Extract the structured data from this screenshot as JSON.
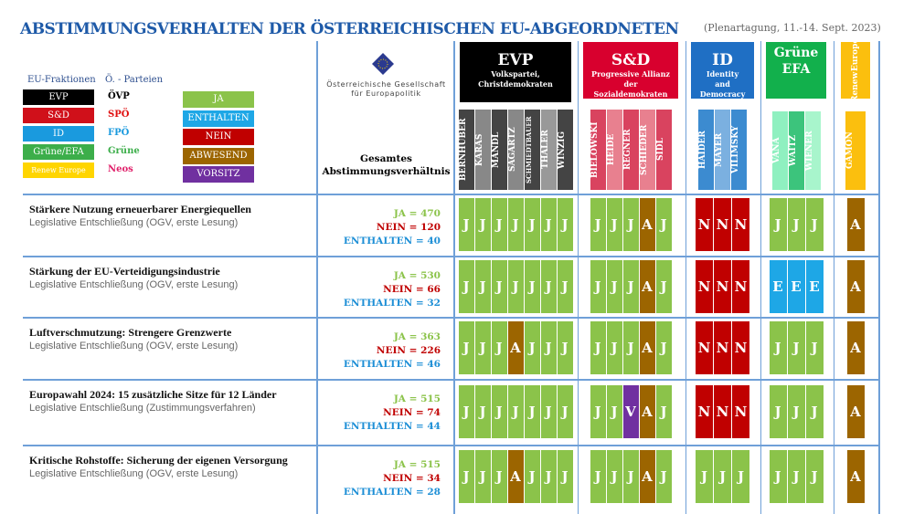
{
  "header": {
    "title": "ABSTIMMUNGSVERHALTEN DER ÖSTERREICHISCHEN  EU-ABGEORDNETEN",
    "session": "(Plenartagung, 11.-14. Sept. 2023)"
  },
  "legend": {
    "fraktionen_label": "EU-Fraktionen",
    "parteien_label": "Ö. - Parteien",
    "fraktionen": [
      {
        "label": "EVP",
        "color": "#000000",
        "party": "ÖVP",
        "party_color": "#000000"
      },
      {
        "label": "S&D",
        "color": "#d0101a",
        "party": "SPÖ",
        "party_color": "#e01010"
      },
      {
        "label": "ID",
        "color": "#1a9ade",
        "party": "FPÖ",
        "party_color": "#1a9ade"
      },
      {
        "label": "Grüne/EFA",
        "color": "#3cae4a",
        "party": "Grüne",
        "party_color": "#3cae4a"
      },
      {
        "label": "Renew Europe",
        "color": "#ffd500",
        "party": "Neos",
        "party_color": "#e0206a"
      }
    ],
    "votes": [
      {
        "label": "JA",
        "color": "#8bc34a"
      },
      {
        "label": "ENTHALTEN",
        "color": "#1ea7e6"
      },
      {
        "label": "NEIN",
        "color": "#c00000"
      },
      {
        "label": "ABWESEND",
        "color": "#9c6500"
      },
      {
        "label": "VORSITZ",
        "color": "#7030a0"
      }
    ]
  },
  "org": {
    "name_line1": "Österreichische Gesellschaft",
    "name_line2": "für Europapolitik"
  },
  "totals_header": {
    "line1": "Gesamtes",
    "line2": "Abstimmungsverhältnis"
  },
  "groups": [
    {
      "name": "EVP",
      "desc": [
        "Volkspartei,",
        "Christdemokraten"
      ],
      "color": "#000000",
      "members": [
        "BERNHUBER",
        "KARAS",
        "MANDL",
        "SAGARTZ",
        "SCHMIEDTBAUER",
        "THALER",
        "WINZIG"
      ],
      "member_colors": [
        "#444444",
        "#888888",
        "#444444",
        "#888888",
        "#444444",
        "#999999",
        "#444444"
      ]
    },
    {
      "name": "S&D",
      "desc": [
        "Progressive Allianz",
        "der",
        "Sozialdemokraten"
      ],
      "color": "#d8002e",
      "members": [
        "BIELOWSKI",
        "HEIDE",
        "REGNER",
        "SCHIEDER",
        "SIDL"
      ],
      "member_colors": [
        "#d9435f",
        "#e8808f",
        "#d9435f",
        "#e8808f",
        "#d9435f"
      ]
    },
    {
      "name": "ID",
      "desc": [
        "Identity",
        "and",
        "Democracy"
      ],
      "color": "#1f6fc4",
      "members": [
        "HAIDER",
        "MAYER",
        "VILIMSKY"
      ],
      "member_colors": [
        "#3c8bd0",
        "#7bb0e0",
        "#3c8bd0"
      ]
    },
    {
      "name": "Grüne",
      "desc": [
        "EFA"
      ],
      "color": "#12b04c",
      "members": [
        "VANA",
        "WAITZ",
        "WIENER"
      ],
      "member_colors": [
        "#8ff0c0",
        "#3cc47c",
        "#a8f5cc"
      ]
    },
    {
      "name": "Renew",
      "desc": [
        "Europe"
      ],
      "color": "#fbbf0e",
      "members": [
        "GAMON"
      ],
      "member_colors": [
        "#fbbf0e"
      ]
    }
  ],
  "vote_colors": {
    "J": "#8bc34a",
    "N": "#c00000",
    "A": "#9c6500",
    "E": "#1ea7e6",
    "V": "#7030a0"
  },
  "rows": [
    {
      "title": "Stärkere Nutzung erneuerbarer Energiequellen",
      "subtitle": "Legislative Entschließung (OGV, erste Lesung)",
      "ja": "JA  = 470",
      "nein": "NEIN = 120",
      "enthalten": "ENTHALTEN = 40",
      "votes": [
        [
          "J",
          "J",
          "J",
          "J",
          "J",
          "J",
          "J"
        ],
        [
          "J",
          "J",
          "J",
          "A",
          "J"
        ],
        [
          "N",
          "N",
          "N"
        ],
        [
          "J",
          "J",
          "J"
        ],
        [
          "A"
        ]
      ]
    },
    {
      "title": "Stärkung der EU-Verteidigungsindustrie",
      "subtitle": "Legislative Entschließung (OGV, erste Lesung)",
      "ja": "JA  = 530",
      "nein": "NEIN = 66",
      "enthalten": "ENTHALTEN = 32",
      "votes": [
        [
          "J",
          "J",
          "J",
          "J",
          "J",
          "J",
          "J"
        ],
        [
          "J",
          "J",
          "J",
          "A",
          "J"
        ],
        [
          "N",
          "N",
          "N"
        ],
        [
          "E",
          "E",
          "E"
        ],
        [
          "A"
        ]
      ]
    },
    {
      "title": "Luftverschmutzung: Strengere Grenzwerte",
      "subtitle": "Legislative Entschließung (OGV, erste Lesung)",
      "ja": "JA  = 363",
      "nein": "NEIN = 226",
      "enthalten": "ENTHALTEN = 46",
      "votes": [
        [
          "J",
          "J",
          "J",
          "A",
          "J",
          "J",
          "J"
        ],
        [
          "J",
          "J",
          "J",
          "A",
          "J"
        ],
        [
          "N",
          "N",
          "N"
        ],
        [
          "J",
          "J",
          "J"
        ],
        [
          "A"
        ]
      ]
    },
    {
      "title": "Europawahl 2024: 15 zusätzliche Sitze für 12 Länder",
      "subtitle": "Legislative Entschließung (Zustimmungsverfahren)",
      "ja": "JA  = 515",
      "nein": "NEIN = 74",
      "enthalten": "ENTHALTEN = 44",
      "votes": [
        [
          "J",
          "J",
          "J",
          "J",
          "J",
          "J",
          "J"
        ],
        [
          "J",
          "J",
          "V",
          "A",
          "J"
        ],
        [
          "N",
          "N",
          "N"
        ],
        [
          "J",
          "J",
          "J"
        ],
        [
          "A"
        ]
      ]
    },
    {
      "title": "Kritische Rohstoffe: Sicherung der eigenen Versorgung",
      "subtitle": "Legislative Entschließung (OGV, erste Lesung)",
      "ja": "JA  = 515",
      "nein": "NEIN = 34",
      "enthalten": "ENTHALTEN = 28",
      "votes": [
        [
          "J",
          "J",
          "J",
          "A",
          "J",
          "J",
          "J"
        ],
        [
          "J",
          "J",
          "J",
          "A",
          "J"
        ],
        [
          "J",
          "J",
          "J"
        ],
        [
          "J",
          "J",
          "J"
        ],
        [
          "A"
        ]
      ]
    }
  ]
}
